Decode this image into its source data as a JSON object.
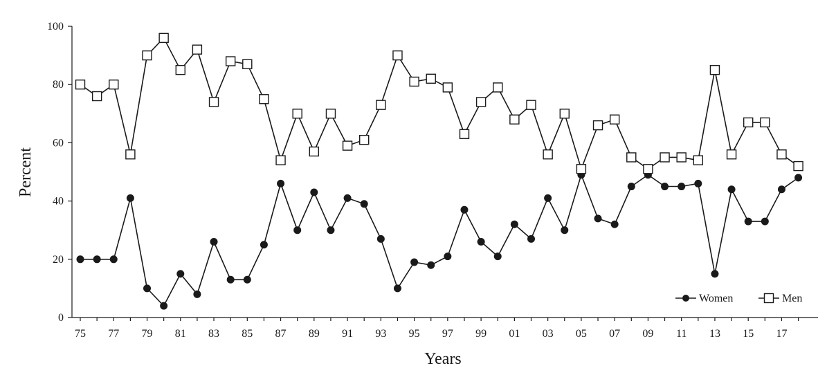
{
  "chart_data": {
    "type": "line",
    "title": "",
    "xlabel": "Years",
    "ylabel": "Percent",
    "ylim": [
      0,
      100
    ],
    "yticks": [
      0,
      20,
      40,
      60,
      80,
      100
    ],
    "x": [
      "75",
      "76",
      "77",
      "78",
      "79",
      "80",
      "81",
      "82",
      "83",
      "84",
      "85",
      "86",
      "87",
      "88",
      "89",
      "90",
      "91",
      "92",
      "93",
      "94",
      "95",
      "96",
      "97",
      "98",
      "99",
      "00",
      "01",
      "02",
      "03",
      "04",
      "05",
      "06",
      "07",
      "08",
      "09",
      "10",
      "11",
      "12",
      "13",
      "14",
      "15",
      "16",
      "17",
      "18"
    ],
    "xtick_labels": [
      "75",
      "77",
      "79",
      "81",
      "83",
      "85",
      "87",
      "89",
      "91",
      "93",
      "95",
      "97",
      "99",
      "01",
      "03",
      "05",
      "07",
      "09",
      "11",
      "13",
      "15",
      "17"
    ],
    "series": [
      {
        "name": "Women",
        "marker": "filled-circle",
        "color": "#1a1a1a",
        "values": [
          20,
          20,
          20,
          41,
          10,
          4,
          15,
          8,
          26,
          13,
          13,
          25,
          46,
          30,
          43,
          30,
          41,
          39,
          27,
          10,
          19,
          18,
          21,
          37,
          26,
          21,
          32,
          27,
          41,
          30,
          49,
          34,
          32,
          45,
          49,
          45,
          45,
          46,
          15,
          44,
          33,
          33,
          44,
          48
        ]
      },
      {
        "name": "Men",
        "marker": "open-square",
        "color": "#1a1a1a",
        "values": [
          80,
          76,
          80,
          56,
          90,
          96,
          85,
          92,
          74,
          88,
          87,
          75,
          54,
          70,
          57,
          70,
          59,
          61,
          73,
          90,
          81,
          82,
          79,
          63,
          74,
          79,
          68,
          73,
          56,
          70,
          51,
          66,
          68,
          55,
          51,
          55,
          55,
          54,
          85,
          56,
          67,
          67,
          56,
          52
        ]
      }
    ],
    "grid": false,
    "legend": "bottom-right"
  }
}
